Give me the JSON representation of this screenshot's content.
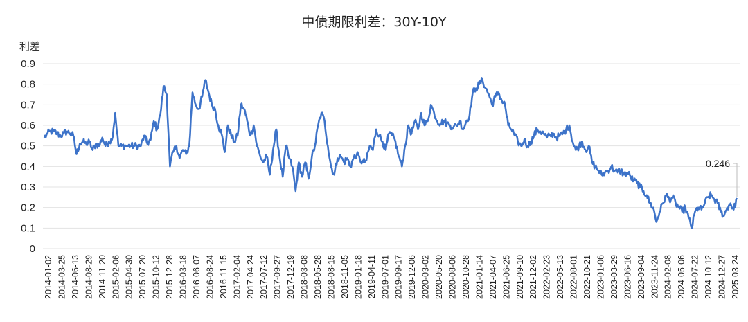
{
  "chart_data": {
    "type": "line",
    "title": "中债期限利差：30Y-10Y",
    "ylabel": "利差",
    "xlabel": "",
    "ylim": [
      0,
      0.9
    ],
    "yticks": [
      0,
      0.1,
      0.2,
      0.3,
      0.4,
      0.5,
      0.6,
      0.7,
      0.8,
      0.9
    ],
    "grid": "horizontal",
    "legend": "none",
    "colors": {
      "series": "#3d73c9"
    },
    "x_tick_labels": [
      "2014-01-02",
      "2014-03-25",
      "2014-06-13",
      "2014-08-29",
      "2014-11-20",
      "2015-02-06",
      "2015-04-30",
      "2015-07-20",
      "2015-10-12",
      "2015-12-28",
      "2016-03-18",
      "2016-06-07",
      "2016-08-24",
      "2016-11-15",
      "2017-02-04",
      "2017-04-24",
      "2017-07-12",
      "2017-09-27",
      "2017-12-19",
      "2018-03-08",
      "2018-05-28",
      "2018-08-15",
      "2018-11-05",
      "2019-01-18",
      "2019-04-11",
      "2019-07-01",
      "2019-09-17",
      "2019-12-06",
      "2020-03-02",
      "2020-05-20",
      "2020-08-06",
      "2020-10-28",
      "2021-01-14",
      "2021-04-07",
      "2021-06-25",
      "2021-09-10",
      "2021-12-02",
      "2022-02-23",
      "2022-05-13",
      "2022-08-01",
      "2022-10-21",
      "2023-01-06",
      "2023-03-29",
      "2023-06-16",
      "2023-09-04",
      "2023-11-24",
      "2024-02-08",
      "2024-05-06",
      "2024-07-22",
      "2024-10-12",
      "2024-12-27",
      "2025-03-24"
    ],
    "series": [
      {
        "values": [
          0.54,
          0.56,
          0.57,
          0.57,
          0.56,
          0.55,
          0.56,
          0.57,
          0.56,
          0.55,
          0.46,
          0.51,
          0.52,
          0.51,
          0.52,
          0.48,
          0.51,
          0.5,
          0.54,
          0.5,
          0.52,
          0.53,
          0.66,
          0.5,
          0.5,
          0.5,
          0.5,
          0.5,
          0.5,
          0.5,
          0.5,
          0.55,
          0.51,
          0.53,
          0.62,
          0.58,
          0.65,
          0.79,
          0.75,
          0.4,
          0.47,
          0.5,
          0.44,
          0.48,
          0.46,
          0.5,
          0.76,
          0.7,
          0.68,
          0.74,
          0.82,
          0.76,
          0.7,
          0.68,
          0.6,
          0.56,
          0.47,
          0.6,
          0.55,
          0.52,
          0.55,
          0.7,
          0.68,
          0.62,
          0.55,
          0.6,
          0.5,
          0.45,
          0.42,
          0.45,
          0.36,
          0.48,
          0.58,
          0.45,
          0.35,
          0.5,
          0.44,
          0.4,
          0.28,
          0.42,
          0.35,
          0.42,
          0.34,
          0.44,
          0.5,
          0.6,
          0.66,
          0.62,
          0.5,
          0.4,
          0.36,
          0.44,
          0.45,
          0.42,
          0.44,
          0.4,
          0.44,
          0.46,
          0.43,
          0.42,
          0.43,
          0.5,
          0.48,
          0.58,
          0.55,
          0.52,
          0.48,
          0.56,
          0.55,
          0.52,
          0.45,
          0.4,
          0.5,
          0.6,
          0.56,
          0.62,
          0.58,
          0.66,
          0.6,
          0.62,
          0.7,
          0.66,
          0.62,
          0.61,
          0.62,
          0.61,
          0.6,
          0.59,
          0.6,
          0.62,
          0.58,
          0.62,
          0.65,
          0.76,
          0.78,
          0.8,
          0.82,
          0.78,
          0.75,
          0.7,
          0.74,
          0.76,
          0.72,
          0.7,
          0.6,
          0.58,
          0.55,
          0.52,
          0.5,
          0.53,
          0.5,
          0.52,
          0.55,
          0.58,
          0.57,
          0.56,
          0.54,
          0.55,
          0.56,
          0.54,
          0.55,
          0.56,
          0.58,
          0.6,
          0.52,
          0.48,
          0.5,
          0.52,
          0.48,
          0.5,
          0.42,
          0.4,
          0.38,
          0.36,
          0.37,
          0.38,
          0.4,
          0.38,
          0.37,
          0.38,
          0.36,
          0.37,
          0.35,
          0.33,
          0.32,
          0.3,
          0.28,
          0.26,
          0.22,
          0.2,
          0.13,
          0.18,
          0.22,
          0.26,
          0.24,
          0.25,
          0.22,
          0.2,
          0.18,
          0.2,
          0.15,
          0.1,
          0.18,
          0.2,
          0.19,
          0.22,
          0.25,
          0.26,
          0.24,
          0.22,
          0.18,
          0.16,
          0.2,
          0.22,
          0.19,
          0.246
        ]
      }
    ],
    "annotations": [
      {
        "text": "0.246",
        "value": 0.246,
        "x_index": "last"
      }
    ]
  }
}
